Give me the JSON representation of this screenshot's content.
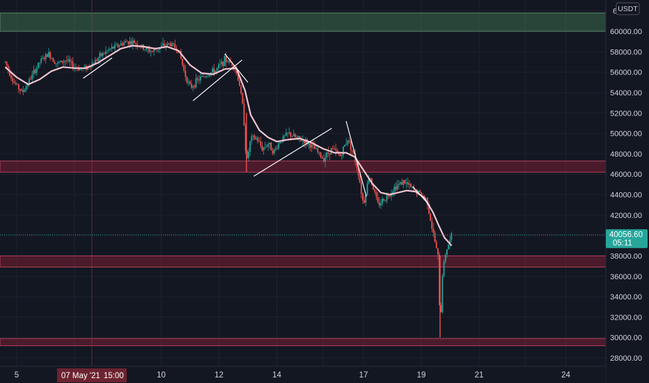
{
  "chart_data": {
    "type": "candlestick",
    "quote_unit": "USDT",
    "ylim": [
      27000,
      63000
    ],
    "y_ticks": [
      28000,
      30000,
      32000,
      34000,
      36000,
      38000,
      40000,
      42000,
      44000,
      46000,
      48000,
      50000,
      52000,
      54000,
      56000,
      58000,
      60000
    ],
    "y_tick_labels": [
      "28000.00",
      "30000.00",
      "32000.00",
      "34000.00",
      "36000.00",
      "38000.00",
      "40000.00",
      "42000.00",
      "44000.00",
      "46000.00",
      "48000.00",
      "50000.00",
      "52000.00",
      "54000.00",
      "56000.00",
      "58000.00",
      "60000.00"
    ],
    "top_partial_label": "6",
    "x_axis_labels": [
      {
        "day": 5,
        "text": "5"
      },
      {
        "day": 10,
        "text": "10"
      },
      {
        "day": 12,
        "text": "12"
      },
      {
        "day": 14,
        "text": "14"
      },
      {
        "day": 17,
        "text": "17"
      },
      {
        "day": 19,
        "text": "19"
      },
      {
        "day": 21,
        "text": "21"
      },
      {
        "day": 24,
        "text": "24"
      }
    ],
    "x_range_days": [
      4.6,
      24.8
    ],
    "crosshair": {
      "day": 7.6,
      "date_label": "07 May '21",
      "time_label": "15:00"
    },
    "last_price": {
      "value": 40056.6,
      "label": "40056.60",
      "countdown": "05:11",
      "color": "#26a69a"
    },
    "zones": [
      {
        "kind": "supply",
        "from": 60000,
        "to": 61800,
        "color": "#3d6b4f"
      },
      {
        "kind": "level",
        "from": 46200,
        "to": 47300,
        "color": "#7a1f33"
      },
      {
        "kind": "level",
        "from": 36900,
        "to": 38000,
        "color": "#7a1f33"
      },
      {
        "kind": "level",
        "from": 29200,
        "to": 29900,
        "color": "#7a1f33"
      }
    ],
    "price_path": [
      [
        4.6,
        57000
      ],
      [
        4.9,
        55000
      ],
      [
        5.2,
        54000
      ],
      [
        5.5,
        55500
      ],
      [
        5.8,
        57000
      ],
      [
        6.1,
        57800
      ],
      [
        6.4,
        56800
      ],
      [
        6.7,
        57200
      ],
      [
        7.0,
        56500
      ],
      [
        7.3,
        56300
      ],
      [
        7.6,
        56800
      ],
      [
        7.9,
        57600
      ],
      [
        8.2,
        58200
      ],
      [
        8.5,
        58600
      ],
      [
        8.8,
        59000
      ],
      [
        9.1,
        58900
      ],
      [
        9.4,
        58300
      ],
      [
        9.7,
        58000
      ],
      [
        10.0,
        58500
      ],
      [
        10.3,
        58800
      ],
      [
        10.6,
        58200
      ],
      [
        10.8,
        56000
      ],
      [
        11.0,
        54500
      ],
      [
        11.3,
        55300
      ],
      [
        11.6,
        55800
      ],
      [
        11.9,
        56200
      ],
      [
        12.2,
        57200
      ],
      [
        12.5,
        56800
      ],
      [
        12.7,
        55000
      ],
      [
        12.85,
        52000
      ],
      [
        12.95,
        47000
      ],
      [
        13.1,
        49500
      ],
      [
        13.3,
        49500
      ],
      [
        13.5,
        48500
      ],
      [
        13.7,
        49000
      ],
      [
        13.9,
        48200
      ],
      [
        14.1,
        49200
      ],
      [
        14.4,
        50000
      ],
      [
        14.7,
        49500
      ],
      [
        15.0,
        49200
      ],
      [
        15.3,
        48500
      ],
      [
        15.6,
        47500
      ],
      [
        15.9,
        48500
      ],
      [
        16.2,
        47800
      ],
      [
        16.45,
        49500
      ],
      [
        16.65,
        48000
      ],
      [
        16.8,
        46500
      ],
      [
        17.0,
        43000
      ],
      [
        17.2,
        46000
      ],
      [
        17.5,
        43000
      ],
      [
        17.8,
        43800
      ],
      [
        18.1,
        44800
      ],
      [
        18.4,
        45300
      ],
      [
        18.7,
        44500
      ],
      [
        19.0,
        44000
      ],
      [
        19.2,
        43500
      ],
      [
        19.35,
        41000
      ],
      [
        19.5,
        39000
      ],
      [
        19.6,
        37500
      ],
      [
        19.65,
        30000
      ],
      [
        19.72,
        36000
      ],
      [
        19.85,
        38500
      ],
      [
        20.0,
        39500
      ],
      [
        20.05,
        40056.6
      ]
    ],
    "ma_path": [
      [
        4.6,
        56500
      ],
      [
        5.0,
        55500
      ],
      [
        5.4,
        54800
      ],
      [
        5.8,
        55300
      ],
      [
        6.2,
        56100
      ],
      [
        6.6,
        56500
      ],
      [
        7.0,
        56400
      ],
      [
        7.4,
        56400
      ],
      [
        7.8,
        56900
      ],
      [
        8.2,
        57600
      ],
      [
        8.6,
        58300
      ],
      [
        9.0,
        58600
      ],
      [
        9.4,
        58500
      ],
      [
        9.8,
        58300
      ],
      [
        10.2,
        58500
      ],
      [
        10.6,
        58100
      ],
      [
        11.0,
        56700
      ],
      [
        11.4,
        55900
      ],
      [
        11.8,
        55800
      ],
      [
        12.2,
        56300
      ],
      [
        12.6,
        56400
      ],
      [
        12.9,
        54200
      ],
      [
        13.1,
        51800
      ],
      [
        13.4,
        50300
      ],
      [
        13.7,
        49600
      ],
      [
        14.0,
        49200
      ],
      [
        14.4,
        49400
      ],
      [
        14.8,
        49500
      ],
      [
        15.2,
        49100
      ],
      [
        15.6,
        48500
      ],
      [
        16.0,
        48100
      ],
      [
        16.4,
        48100
      ],
      [
        16.7,
        47700
      ],
      [
        17.0,
        46400
      ],
      [
        17.3,
        45100
      ],
      [
        17.6,
        44200
      ],
      [
        17.9,
        44000
      ],
      [
        18.2,
        44200
      ],
      [
        18.5,
        44400
      ],
      [
        18.8,
        44300
      ],
      [
        19.1,
        43700
      ],
      [
        19.4,
        42300
      ],
      [
        19.6,
        41000
      ],
      [
        19.8,
        39800
      ],
      [
        20.05,
        39000
      ]
    ],
    "trend_lines": [
      [
        [
          7.3,
          55400
        ],
        [
          8.3,
          57400
        ]
      ],
      [
        [
          11.1,
          53200
        ],
        [
          12.8,
          57200
        ]
      ],
      [
        [
          12.2,
          57800
        ],
        [
          13.0,
          55000
        ]
      ],
      [
        [
          13.2,
          45800
        ],
        [
          15.9,
          50500
        ]
      ],
      [
        [
          16.4,
          51200
        ],
        [
          17.1,
          43800
        ]
      ],
      [
        [
          18.7,
          44800
        ],
        [
          19.3,
          42900
        ]
      ]
    ]
  }
}
